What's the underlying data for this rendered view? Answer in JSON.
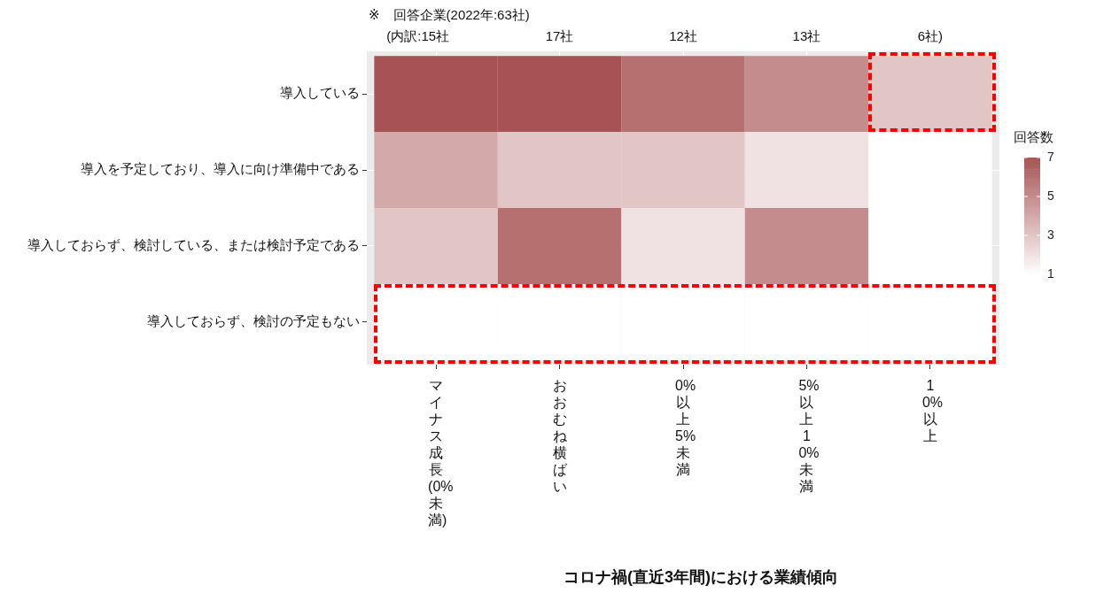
{
  "chart_data": {
    "type": "heatmap",
    "title": "※　回答企業(2022年:63社)",
    "annotations": [
      "(内訳:15社",
      "17社",
      "12社",
      "13社",
      "6社)"
    ],
    "xlabel": "コロナ禍(直近3年間)における業績傾向",
    "categories": [
      "マイナス成長(0%未満)",
      "おおむね横ばい",
      "0%以上5%未満",
      "5%以上10%未満",
      "10%以上"
    ],
    "y_categories": [
      "導入している",
      "導入を予定しており、導入に向け準備中である",
      "導入しておらず、検討している、または検討予定である",
      "導入しておらず、検討の予定もない"
    ],
    "cells": [
      [
        7,
        7,
        6,
        5,
        3
      ],
      [
        4,
        3,
        3,
        2,
        1
      ],
      [
        3,
        6,
        2,
        5,
        1
      ],
      [
        1,
        1,
        1,
        1,
        1
      ]
    ],
    "colors": [
      "#ffffff",
      "#a75353"
    ],
    "grid": true,
    "clabel": "回答数",
    "clim": [
      1,
      7
    ],
    "cticks": [
      1,
      3,
      5,
      7
    ]
  }
}
